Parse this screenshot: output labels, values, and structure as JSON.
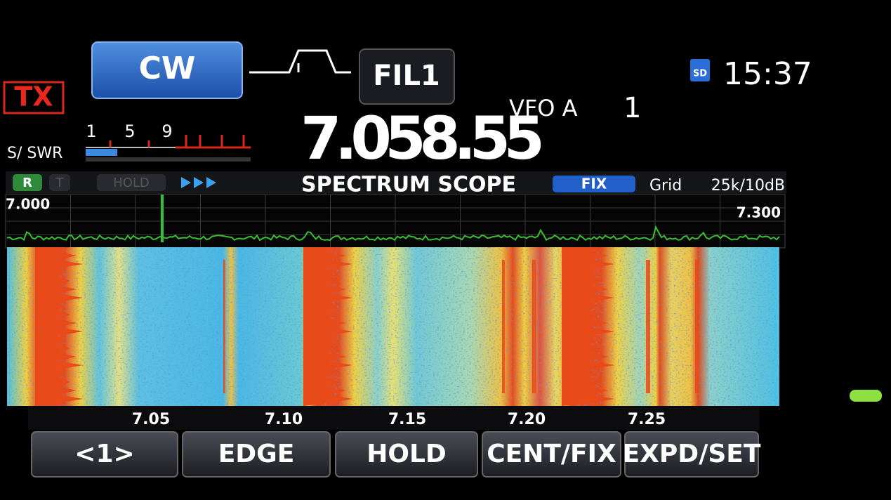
{
  "header": {
    "tx": "TX",
    "mode": "CW",
    "filter": "FIL1",
    "vfo": "VFO A",
    "memory": "1",
    "sd": "SD",
    "time": "15:37"
  },
  "meter": {
    "label": "S/ SWR",
    "scale": [
      "1",
      "5",
      "9"
    ]
  },
  "frequency": "7.058.55",
  "scope": {
    "status": [
      "R",
      "T",
      "HOLD"
    ],
    "title": "SPECTRUM SCOPE",
    "fix": "FIX",
    "grid": "Grid",
    "span": "25k/10dB",
    "start": "7.000",
    "end": "7.300",
    "axis_labels": [
      "7.05",
      "7.10",
      "7.15",
      "7.20",
      "7.25"
    ]
  },
  "buttons": [
    "<1>",
    "EDGE",
    "HOLD",
    "CENT/FIX",
    "EXPD/SET"
  ]
}
